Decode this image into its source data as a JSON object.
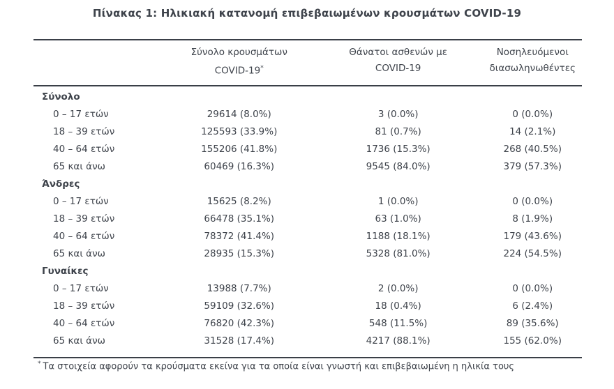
{
  "title": "Πίνακας 1: Ηλικιακή κατανομή επιβεβαιωμένων κρουσμάτων COVID-19",
  "table": {
    "columns": [
      {
        "line1": "",
        "line2": ""
      },
      {
        "line1": "Σύνολο κρουσμάτων",
        "line2": "COVID-19",
        "sup": "*"
      },
      {
        "line1": "Θάνατοι ασθενών με",
        "line2": "COVID-19"
      },
      {
        "line1": "Νοσηλευόμενοι",
        "line2": "διασωληνωθέντες"
      }
    ],
    "sections": [
      {
        "label": "Σύνολο",
        "rows": [
          {
            "age": "0 – 17 ετών",
            "cases": "29614 (8.0%)",
            "deaths": "3 (0.0%)",
            "intubated": "0 (0.0%)"
          },
          {
            "age": "18 – 39 ετών",
            "cases": "125593 (33.9%)",
            "deaths": "81 (0.7%)",
            "intubated": "14 (2.1%)"
          },
          {
            "age": "40 – 64 ετών",
            "cases": "155206 (41.8%)",
            "deaths": "1736 (15.3%)",
            "intubated": "268 (40.5%)"
          },
          {
            "age": "65 και άνω",
            "cases": "60469 (16.3%)",
            "deaths": "9545 (84.0%)",
            "intubated": "379 (57.3%)"
          }
        ]
      },
      {
        "label": "Άνδρες",
        "rows": [
          {
            "age": "0 – 17 ετών",
            "cases": "15625 (8.2%)",
            "deaths": "1 (0.0%)",
            "intubated": "0 (0.0%)"
          },
          {
            "age": "18 – 39 ετών",
            "cases": "66478 (35.1%)",
            "deaths": "63 (1.0%)",
            "intubated": "8 (1.9%)"
          },
          {
            "age": "40 – 64 ετών",
            "cases": "78372 (41.4%)",
            "deaths": "1188 (18.1%)",
            "intubated": "179 (43.6%)"
          },
          {
            "age": "65 και άνω",
            "cases": "28935 (15.3%)",
            "deaths": "5328 (81.0%)",
            "intubated": "224 (54.5%)"
          }
        ]
      },
      {
        "label": "Γυναίκες",
        "rows": [
          {
            "age": "0 – 17 ετών",
            "cases": "13988 (7.7%)",
            "deaths": "2 (0.0%)",
            "intubated": "0 (0.0%)"
          },
          {
            "age": "18 – 39 ετών",
            "cases": "59109 (32.6%)",
            "deaths": "18 (0.4%)",
            "intubated": "6 (2.4%)"
          },
          {
            "age": "40 – 64 ετών",
            "cases": "76820 (42.3%)",
            "deaths": "548 (11.5%)",
            "intubated": "89 (35.6%)"
          },
          {
            "age": "65 και άνω",
            "cases": "31528 (17.4%)",
            "deaths": "4217 (88.1%)",
            "intubated": "155 (62.0%)"
          }
        ]
      }
    ],
    "footnote_marker": "*",
    "footnote": "Τα στοιχεία αφορούν τα κρούσματα εκείνα για τα οποία είναι γνωστή και επιβεβαιωμένη η ηλικία τους"
  },
  "colors": {
    "text": "#3e434b",
    "border": "#3a3f47",
    "background": "#ffffff"
  }
}
